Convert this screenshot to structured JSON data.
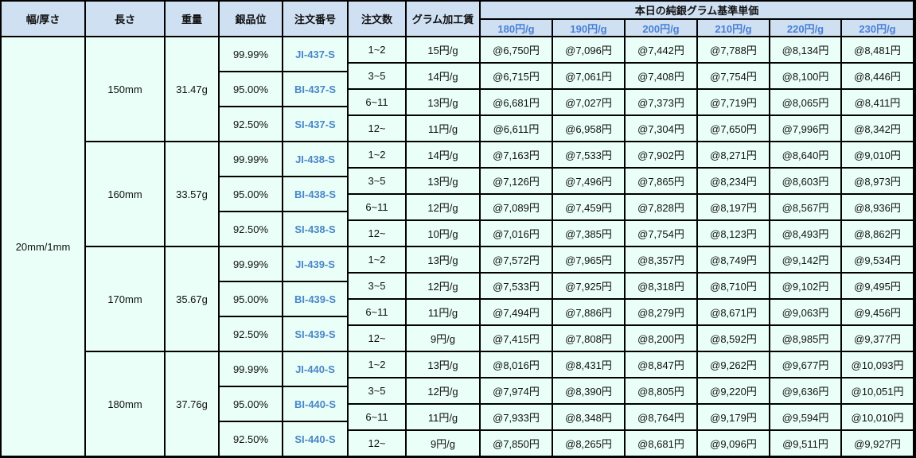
{
  "colors": {
    "header_bg": "#cfe0f3",
    "body_bg": "#eafff8",
    "accent": "#4a86c8",
    "border": "#000000"
  },
  "headers": {
    "width": "幅/厚さ",
    "length": "長さ",
    "weight": "重量",
    "grade": "銀品位",
    "order_no": "注文番号",
    "qty": "注文数",
    "fee": "グラム加工賃",
    "base_price": "本日の純銀グラム基準単価"
  },
  "price_headers": [
    "180円/g",
    "190円/g",
    "200円/g",
    "210円/g",
    "220円/g",
    "230円/g"
  ],
  "width_value": "20mm/1mm",
  "groups": [
    {
      "length": "150mm",
      "weight": "31.47g",
      "grades": [
        {
          "grade": "99.99%",
          "code": "JI-437-S"
        },
        {
          "grade": "95.00%",
          "code": "BI-437-S"
        },
        {
          "grade": "92.50%",
          "code": "SI-437-S"
        }
      ],
      "rows": [
        {
          "qty": "1~2",
          "fee": "15円/g",
          "prices": [
            "@6,750円",
            "@7,096円",
            "@7,442円",
            "@7,788円",
            "@8,134円",
            "@8,481円"
          ]
        },
        {
          "qty": "3~5",
          "fee": "14円/g",
          "prices": [
            "@6,715円",
            "@7,061円",
            "@7,408円",
            "@7,754円",
            "@8,100円",
            "@8,446円"
          ]
        },
        {
          "qty": "6~11",
          "fee": "13円/g",
          "prices": [
            "@6,681円",
            "@7,027円",
            "@7,373円",
            "@7,719円",
            "@8,065円",
            "@8,411円"
          ]
        },
        {
          "qty": "12~",
          "fee": "11円/g",
          "prices": [
            "@6,611円",
            "@6,958円",
            "@7,304円",
            "@7,650円",
            "@7,996円",
            "@8,342円"
          ]
        }
      ]
    },
    {
      "length": "160mm",
      "weight": "33.57g",
      "grades": [
        {
          "grade": "99.99%",
          "code": "JI-438-S"
        },
        {
          "grade": "95.00%",
          "code": "BI-438-S"
        },
        {
          "grade": "92.50%",
          "code": "SI-438-S"
        }
      ],
      "rows": [
        {
          "qty": "1~2",
          "fee": "14円/g",
          "prices": [
            "@7,163円",
            "@7,533円",
            "@7,902円",
            "@8,271円",
            "@8,640円",
            "@9,010円"
          ]
        },
        {
          "qty": "3~5",
          "fee": "13円/g",
          "prices": [
            "@7,126円",
            "@7,496円",
            "@7,865円",
            "@8,234円",
            "@8,603円",
            "@8,973円"
          ]
        },
        {
          "qty": "6~11",
          "fee": "12円/g",
          "prices": [
            "@7,089円",
            "@7,459円",
            "@7,828円",
            "@8,197円",
            "@8,567円",
            "@8,936円"
          ]
        },
        {
          "qty": "12~",
          "fee": "10円/g",
          "prices": [
            "@7,016円",
            "@7,385円",
            "@7,754円",
            "@8,123円",
            "@8,493円",
            "@8,862円"
          ]
        }
      ]
    },
    {
      "length": "170mm",
      "weight": "35.67g",
      "grades": [
        {
          "grade": "99.99%",
          "code": "JI-439-S"
        },
        {
          "grade": "95.00%",
          "code": "BI-439-S"
        },
        {
          "grade": "92.50%",
          "code": "SI-439-S"
        }
      ],
      "rows": [
        {
          "qty": "1~2",
          "fee": "13円/g",
          "prices": [
            "@7,572円",
            "@7,965円",
            "@8,357円",
            "@8,749円",
            "@9,142円",
            "@9,534円"
          ]
        },
        {
          "qty": "3~5",
          "fee": "12円/g",
          "prices": [
            "@7,533円",
            "@7,925円",
            "@8,318円",
            "@8,710円",
            "@9,102円",
            "@9,495円"
          ]
        },
        {
          "qty": "6~11",
          "fee": "11円/g",
          "prices": [
            "@7,494円",
            "@7,886円",
            "@8,279円",
            "@8,671円",
            "@9,063円",
            "@9,456円"
          ]
        },
        {
          "qty": "12~",
          "fee": "9円/g",
          "prices": [
            "@7,415円",
            "@7,808円",
            "@8,200円",
            "@8,592円",
            "@8,985円",
            "@9,377円"
          ]
        }
      ]
    },
    {
      "length": "180mm",
      "weight": "37.76g",
      "grades": [
        {
          "grade": "99.99%",
          "code": "JI-440-S"
        },
        {
          "grade": "95.00%",
          "code": "BI-440-S"
        },
        {
          "grade": "92.50%",
          "code": "SI-440-S"
        }
      ],
      "rows": [
        {
          "qty": "1~2",
          "fee": "13円/g",
          "prices": [
            "@8,016円",
            "@8,431円",
            "@8,847円",
            "@9,262円",
            "@9,677円",
            "@10,093円"
          ]
        },
        {
          "qty": "3~5",
          "fee": "12円/g",
          "prices": [
            "@7,974円",
            "@8,390円",
            "@8,805円",
            "@9,220円",
            "@9,636円",
            "@10,051円"
          ]
        },
        {
          "qty": "6~11",
          "fee": "11円/g",
          "prices": [
            "@7,933円",
            "@8,348円",
            "@8,764円",
            "@9,179円",
            "@9,594円",
            "@10,010円"
          ]
        },
        {
          "qty": "12~",
          "fee": "9円/g",
          "prices": [
            "@7,850円",
            "@8,265円",
            "@8,681円",
            "@9,096円",
            "@9,511円",
            "@9,927円"
          ]
        }
      ]
    }
  ]
}
